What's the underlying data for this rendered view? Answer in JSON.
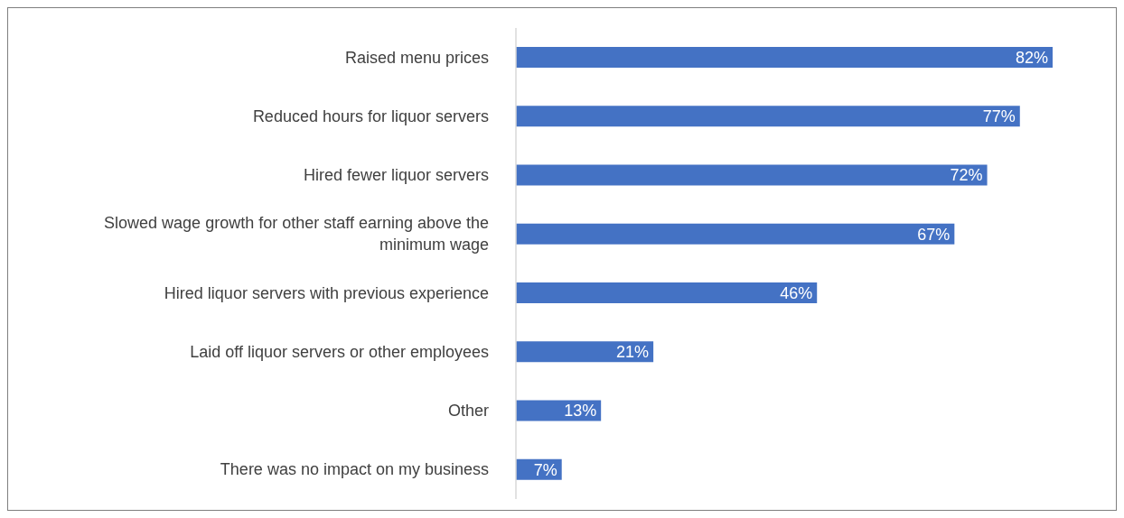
{
  "chart_data": {
    "type": "bar",
    "orientation": "horizontal",
    "categories": [
      "Raised menu prices",
      "Reduced hours for liquor servers",
      "Hired fewer liquor servers",
      "Slowed wage growth for other staff earning above the minimum wage",
      "Hired liquor servers with previous experience",
      "Laid off liquor servers or other employees",
      "Other",
      "There was no impact on my business"
    ],
    "values": [
      82,
      77,
      72,
      67,
      46,
      21,
      13,
      7
    ],
    "value_labels": [
      "82%",
      "77%",
      "72%",
      "67%",
      "46%",
      "21%",
      "13%",
      "7%"
    ],
    "color": "#4472c4",
    "grid": false,
    "legend": false
  }
}
